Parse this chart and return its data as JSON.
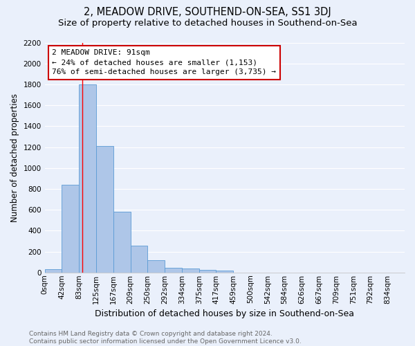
{
  "title": "2, MEADOW DRIVE, SOUTHEND-ON-SEA, SS1 3DJ",
  "subtitle": "Size of property relative to detached houses in Southend-on-Sea",
  "xlabel": "Distribution of detached houses by size in Southend-on-Sea",
  "ylabel": "Number of detached properties",
  "bin_labels": [
    "0sqm",
    "42sqm",
    "83sqm",
    "125sqm",
    "167sqm",
    "209sqm",
    "250sqm",
    "292sqm",
    "334sqm",
    "375sqm",
    "417sqm",
    "459sqm",
    "500sqm",
    "542sqm",
    "584sqm",
    "626sqm",
    "667sqm",
    "709sqm",
    "751sqm",
    "792sqm",
    "834sqm"
  ],
  "bar_heights": [
    30,
    840,
    1800,
    1210,
    580,
    255,
    115,
    45,
    38,
    28,
    18,
    0,
    0,
    0,
    0,
    0,
    0,
    0,
    0,
    0,
    0
  ],
  "bar_color": "#aec6e8",
  "bar_edge_color": "#5b9bd5",
  "property_bin_index": 2,
  "annotation_text": "2 MEADOW DRIVE: 91sqm\n← 24% of detached houses are smaller (1,153)\n76% of semi-detached houses are larger (3,735) →",
  "annotation_box_color": "#ffffff",
  "annotation_box_edge": "#cc0000",
  "ylim": [
    0,
    2200
  ],
  "yticks": [
    0,
    200,
    400,
    600,
    800,
    1000,
    1200,
    1400,
    1600,
    1800,
    2000,
    2200
  ],
  "bg_color": "#eaf0fb",
  "grid_color": "#ffffff",
  "footer_text": "Contains HM Land Registry data © Crown copyright and database right 2024.\nContains public sector information licensed under the Open Government Licence v3.0.",
  "title_fontsize": 10.5,
  "subtitle_fontsize": 9.5,
  "xlabel_fontsize": 9,
  "ylabel_fontsize": 8.5,
  "tick_fontsize": 7.5,
  "annotation_fontsize": 8,
  "footer_fontsize": 6.5
}
